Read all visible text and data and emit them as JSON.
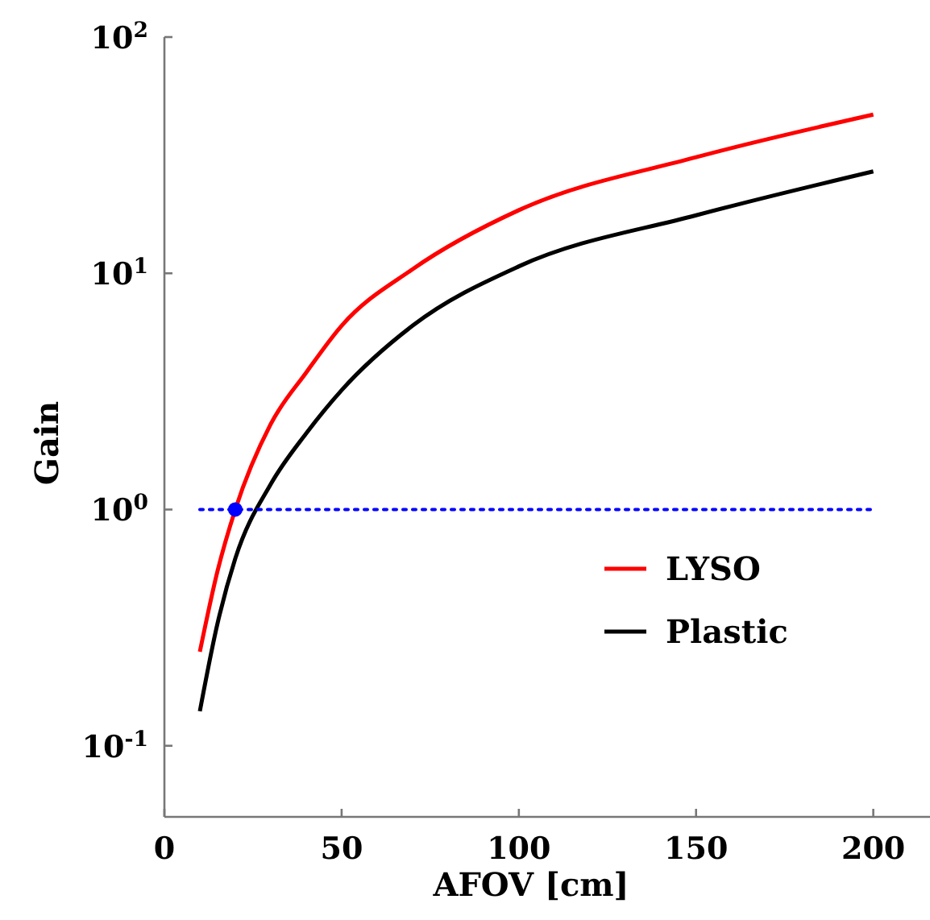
{
  "chart_data": {
    "type": "line",
    "xlabel": "AFOV [cm]",
    "ylabel": "Gain",
    "log": "y",
    "xlim": [
      0,
      216
    ],
    "ylim": [
      0.05,
      100
    ],
    "xticks": [
      0,
      50,
      100,
      150,
      200
    ],
    "yticks": [
      {
        "value": 0.1,
        "label": "10$^{-1}$"
      },
      {
        "value": 1,
        "label": "10$^{0}$"
      },
      {
        "value": 10,
        "label": "10$^{1}$"
      },
      {
        "value": 100,
        "label": "10$^{2}$"
      }
    ],
    "legend": "bottom right",
    "grid": false,
    "series": [
      {
        "name": "LYSO",
        "color": "#ff0000",
        "x": [
          10,
          15,
          20,
          30,
          40,
          50,
          70,
          100,
          150,
          200
        ],
        "values": [
          0.25,
          0.55,
          1.0,
          2.3,
          3.8,
          6.0,
          10.4,
          18.5,
          31,
          47
        ]
      },
      {
        "name": "Plastic",
        "color": "#000000",
        "x": [
          10,
          15,
          20,
          30,
          40,
          50,
          70,
          100,
          150,
          200
        ],
        "values": [
          0.14,
          0.33,
          0.62,
          1.28,
          2.1,
          3.2,
          6.0,
          10.7,
          17.6,
          27
        ]
      },
      {
        "type": "line",
        "color": "#0000ff",
        "line_style": "dotted",
        "x": [
          10,
          200
        ],
        "values": [
          1,
          1
        ]
      },
      {
        "type": "scatter",
        "color": "#0000ff",
        "marker": "circle",
        "x": [
          20
        ],
        "values": [
          1
        ]
      }
    ]
  }
}
